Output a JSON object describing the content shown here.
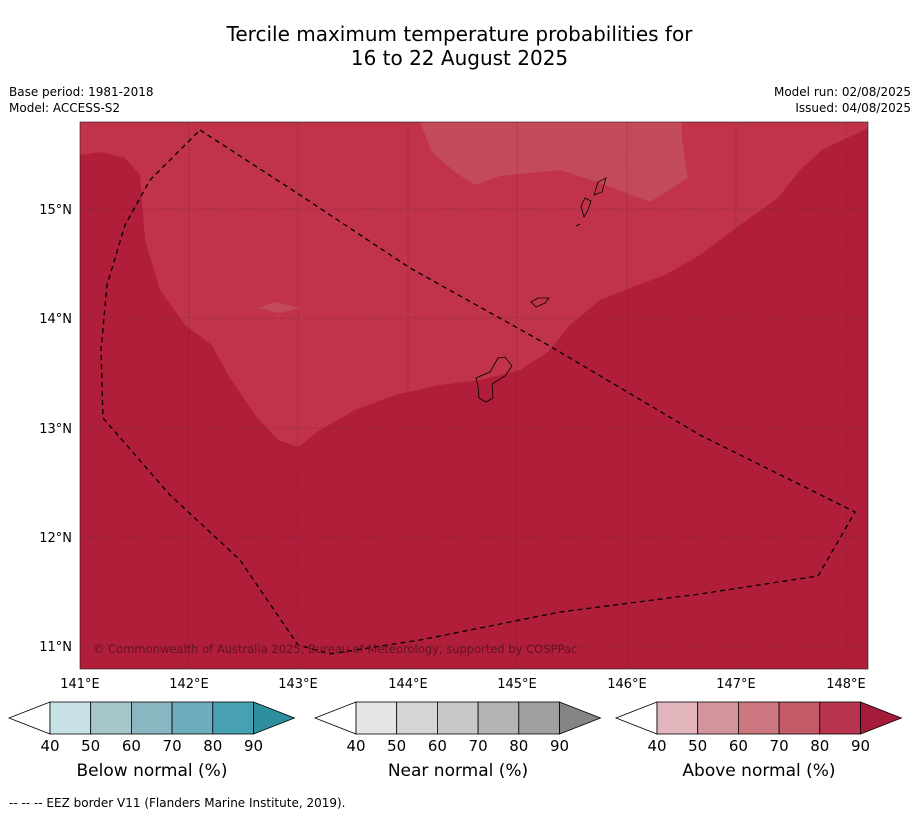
{
  "title_line1": "Tercile maximum temperature probabilities for",
  "title_line2": "16 to 22 August 2025",
  "meta_left": {
    "base_period": "Base period: 1981-2018",
    "model": "Model: ACCESS-S2"
  },
  "meta_right": {
    "model_run": "Model run: 02/08/2025",
    "issued": "Issued: 04/08/2025"
  },
  "map": {
    "lon_labels": [
      "141°E",
      "142°E",
      "143°E",
      "144°E",
      "145°E",
      "146°E",
      "147°E",
      "148°E"
    ],
    "lat_labels": [
      "15°N",
      "14°N",
      "13°N",
      "12°N",
      "11°N"
    ],
    "copyright": "© Commonwealth of Australia 2025, Bureau of Meteorology, supported by COSPPac",
    "colors": {
      "above_80_90": "#b11e3a",
      "above_70_80": "#c0334b",
      "above_60_70": "#c34a5b",
      "coast": "#000000"
    }
  },
  "colorbars": [
    {
      "label": "Below normal (%)",
      "ticks": [
        "40",
        "50",
        "60",
        "70",
        "80",
        "90"
      ],
      "colors": [
        "#ffffff",
        "#c8e1e7",
        "#a6c6cb",
        "#89b6c1",
        "#6eadbc",
        "#48a1b2",
        "#2e8e9e"
      ]
    },
    {
      "label": "Near normal (%)",
      "ticks": [
        "40",
        "50",
        "60",
        "70",
        "80",
        "90"
      ],
      "colors": [
        "#ffffff",
        "#e4e4e4",
        "#d6d6d6",
        "#c8c8c8",
        "#b4b4b4",
        "#a0a0a0",
        "#858585"
      ]
    },
    {
      "label": "Above normal (%)",
      "ticks": [
        "40",
        "50",
        "60",
        "70",
        "80",
        "90"
      ],
      "colors": [
        "#ffffff",
        "#e2b6bc",
        "#d5959e",
        "#cd7880",
        "#c45a68",
        "#b8334d",
        "#a51b3a"
      ]
    }
  ],
  "footer": "--  --  -- EEZ border V11 (Flanders Marine Institute, 2019)."
}
